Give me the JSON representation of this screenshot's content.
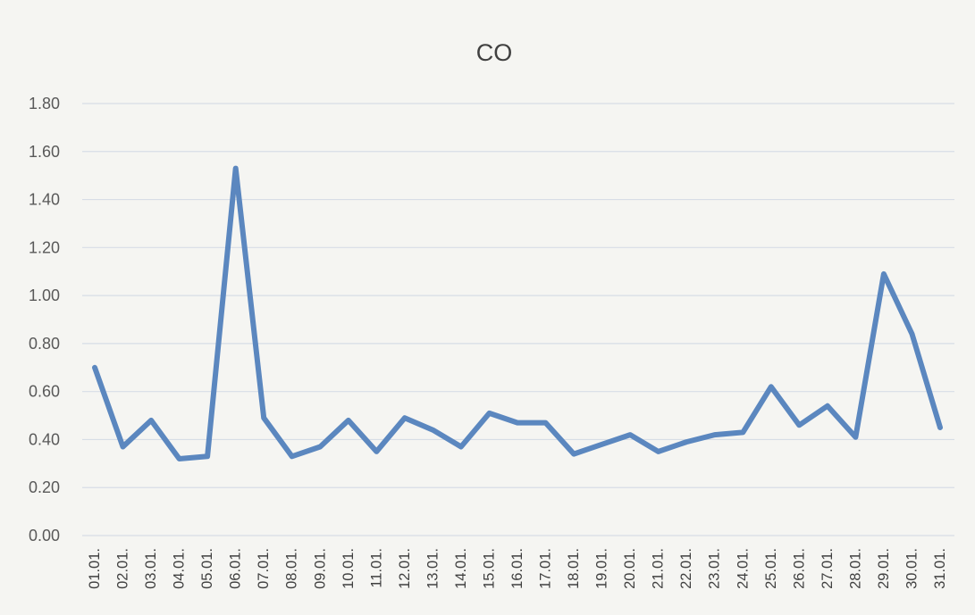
{
  "chart_data": {
    "type": "line",
    "title": "CO",
    "xlabel": "",
    "ylabel": "",
    "ylim": [
      0,
      1.8
    ],
    "yticks": [
      "0.00",
      "0.20",
      "0.40",
      "0.60",
      "0.80",
      "1.00",
      "1.20",
      "1.40",
      "1.60",
      "1.80"
    ],
    "grid": true,
    "legend": "none",
    "categories": [
      "01.01.",
      "02.01.",
      "03.01.",
      "04.01.",
      "05.01.",
      "06.01.",
      "07.01.",
      "08.01.",
      "09.01.",
      "10.01.",
      "11.01.",
      "12.01.",
      "13.01.",
      "14.01.",
      "15.01.",
      "16.01.",
      "17.01.",
      "18.01.",
      "19.01.",
      "20.01.",
      "21.01.",
      "22.01.",
      "23.01.",
      "24.01.",
      "25.01.",
      "26.01.",
      "27.01.",
      "28.01.",
      "29.01.",
      "30.01.",
      "31.01."
    ],
    "series": [
      {
        "color": "#5b87bf",
        "values": [
          0.7,
          0.37,
          0.48,
          0.32,
          0.33,
          1.53,
          0.49,
          0.33,
          0.37,
          0.48,
          0.35,
          0.49,
          0.44,
          0.37,
          0.51,
          0.47,
          0.47,
          0.34,
          0.38,
          0.42,
          0.35,
          0.39,
          0.42,
          0.43,
          0.62,
          0.46,
          0.54,
          0.41,
          1.09,
          0.84,
          0.45
        ]
      }
    ]
  }
}
